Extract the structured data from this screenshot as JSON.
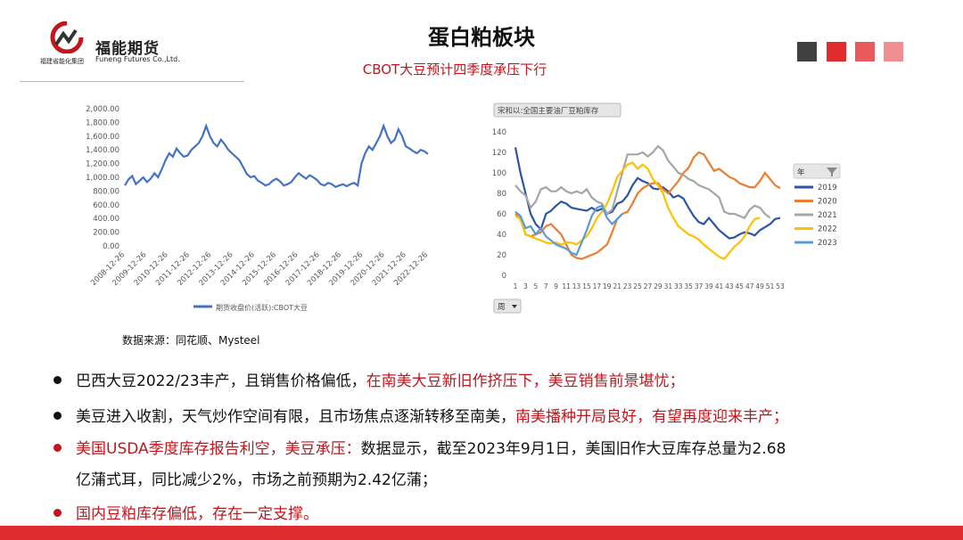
{
  "header": {
    "logo_cn": "福能期货",
    "logo_en": "Funeng Futures Co.,Ltd.",
    "group_name": "福建省能化集团",
    "title": "蛋白粕板块",
    "subtitle": "CBOT大豆预计四季度承压下行",
    "accent_squares": [
      "#404040",
      "#e02b2f",
      "#e85a5e",
      "#ef8d90"
    ]
  },
  "chart_data": [
    {
      "type": "line",
      "legend": "期货收盘价(活跃):CBOT大豆",
      "yticks": [
        "2,000.00",
        "1,800.00",
        "1,600.00",
        "1,400.00",
        "1,200.00",
        "1,000.00",
        "800.00",
        "600.00",
        "400.00",
        "200.00",
        "0.00"
      ],
      "ylim": [
        0,
        2000
      ],
      "xticks": [
        "2008-12-26",
        "2009-12-26",
        "2010-12-26",
        "2011-12-26",
        "2012-12-26",
        "2013-12-26",
        "2014-12-26",
        "2015-12-26",
        "2016-12-26",
        "2017-12-26",
        "2018-12-26",
        "2019-12-26",
        "2020-12-26",
        "2021-12-26",
        "2022-12-26"
      ],
      "color": "#4472c4",
      "series": [
        {
          "values": [
            880,
            970,
            1020,
            900,
            950,
            1000,
            930,
            980,
            1060,
            1000,
            1120,
            1250,
            1350,
            1300,
            1420,
            1350,
            1300,
            1320,
            1400,
            1450,
            1500,
            1600,
            1750,
            1600,
            1500,
            1450,
            1550,
            1480,
            1400,
            1350,
            1300,
            1250,
            1150,
            1050,
            1000,
            1020,
            950,
            920,
            880,
            900,
            950,
            980,
            940,
            880,
            900,
            930,
            1000,
            1060,
            1020,
            980,
            1030,
            1000,
            960,
            900,
            880,
            920,
            900,
            860,
            880,
            900,
            870,
            900,
            920,
            880,
            1200,
            1350,
            1450,
            1400,
            1500,
            1600,
            1750,
            1600,
            1500,
            1550,
            1700,
            1600,
            1450,
            1420,
            1380,
            1350,
            1400,
            1380,
            1340
          ]
        }
      ]
    },
    {
      "type": "line",
      "title": "宋和以:全国主要油厂豆粕库存",
      "ylim": [
        0,
        140
      ],
      "yticks": [
        "140",
        "120",
        "100",
        "80",
        "60",
        "40",
        "20",
        "0"
      ],
      "xticks": [
        "1",
        "3",
        "5",
        "7",
        "9",
        "11",
        "13",
        "15",
        "17",
        "19",
        "21",
        "23",
        "25",
        "27",
        "29",
        "31",
        "33",
        "35",
        "37",
        "39",
        "41",
        "43",
        "45",
        "47",
        "49",
        "51",
        "53"
      ],
      "legend_header": "年",
      "x_filter_label": "周",
      "series": [
        {
          "name": "2019",
          "color": "#2e55a5",
          "values": [
            125,
            100,
            80,
            60,
            50,
            45,
            60,
            63,
            68,
            72,
            70,
            66,
            65,
            64,
            63,
            66,
            63,
            65,
            60,
            62,
            70,
            72,
            78,
            88,
            95,
            92,
            90,
            85,
            84,
            86,
            82,
            76,
            78,
            75,
            66,
            58,
            52,
            50,
            56,
            50,
            44,
            40,
            36,
            37,
            40,
            42,
            41,
            39,
            44,
            47,
            50,
            55,
            56
          ]
        },
        {
          "name": "2020",
          "color": "#ed7d31",
          "values": [
            60,
            55,
            40,
            38,
            40,
            42,
            48,
            50,
            45,
            40,
            30,
            20,
            17,
            16,
            18,
            20,
            22,
            26,
            30,
            42,
            55,
            60,
            62,
            70,
            80,
            85,
            88,
            90,
            90,
            84,
            80,
            86,
            92,
            100,
            105,
            115,
            120,
            118,
            110,
            102,
            104,
            100,
            96,
            94,
            90,
            88,
            86,
            86,
            92,
            100,
            94,
            88,
            85
          ]
        },
        {
          "name": "2021",
          "color": "#a5a5a5",
          "values": [
            88,
            82,
            78,
            66,
            72,
            84,
            86,
            82,
            82,
            86,
            82,
            80,
            82,
            80,
            84,
            76,
            72,
            70,
            60,
            64,
            82,
            100,
            118,
            118,
            118,
            120,
            116,
            120,
            126,
            122,
            112,
            106,
            100,
            98,
            94,
            92,
            88,
            86,
            84,
            80,
            76,
            62,
            60,
            60,
            58,
            56,
            64,
            68,
            66,
            60,
            56
          ]
        },
        {
          "name": "2022",
          "color": "#ffc000",
          "values": [
            58,
            55,
            40,
            38,
            36,
            34,
            32,
            31,
            32,
            30,
            32,
            32,
            30,
            34,
            38,
            46,
            56,
            62,
            70,
            82,
            96,
            102,
            108,
            110,
            104,
            108,
            104,
            94,
            88,
            80,
            66,
            56,
            48,
            44,
            40,
            38,
            35,
            30,
            26,
            22,
            18,
            16,
            22,
            28,
            32,
            38,
            48,
            55,
            56
          ]
        },
        {
          "name": "2023",
          "color": "#5b9bd5",
          "values": [
            62,
            58,
            46,
            48,
            40,
            46,
            38,
            34,
            30,
            28,
            26,
            22,
            20,
            32,
            44,
            58,
            66,
            68,
            56,
            50,
            55,
            60
          ]
        }
      ]
    }
  ],
  "source": "数据来源：同花顺、Mysteel",
  "bullets": [
    {
      "dot": "black",
      "parts": [
        {
          "text": "巴西大豆2022/23丰产，且销售价格偏低，",
          "red": false
        },
        {
          "text": "在南美大豆新旧作挤压下，美豆销售前景堪忧；",
          "red": true
        }
      ]
    },
    {
      "dot": "black",
      "parts": [
        {
          "text": "美豆进入收割，天气炒作空间有限，且市场焦点逐渐转移至南美，",
          "red": false
        },
        {
          "text": "南美播种开局良好，有望再度迎来丰产；",
          "red": true
        }
      ]
    },
    {
      "dot": "red",
      "parts": [
        {
          "text": "美国USDA季度库存报告利空，美豆承压：",
          "red": true
        },
        {
          "text": "数据显示，截至2023年9月1日，美国旧作大豆库存总量为2.68",
          "red": false
        }
      ]
    },
    {
      "dot": "none",
      "parts": [
        {
          "text": "亿蒲式耳，同比减少2%，市场之前预期为2.42亿蒲；",
          "red": false
        }
      ]
    },
    {
      "dot": "red",
      "parts": [
        {
          "text": "国内豆粕库存偏低，存在一定支撑。",
          "red": true
        }
      ]
    }
  ]
}
